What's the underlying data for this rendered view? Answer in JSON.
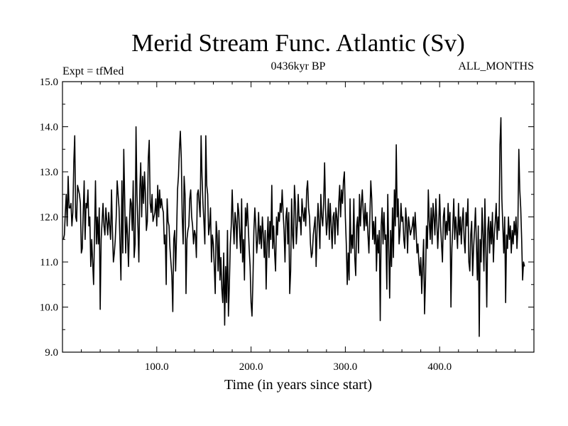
{
  "chart_data": {
    "type": "line",
    "title": "Merid Stream Func. Atlantic (Sv)",
    "subtitle_left": "Expt = tfMed",
    "subtitle_center": "0436kyr BP",
    "subtitle_right": "ALL_MONTHS",
    "xlabel": "Time (in years since start)",
    "ylabel": "",
    "xlim": [
      0,
      500
    ],
    "ylim": [
      9.0,
      15.0
    ],
    "x_ticks": [
      100,
      200,
      300,
      400
    ],
    "x_tick_labels": [
      "100.0",
      "200.0",
      "300.0",
      "400.0"
    ],
    "y_ticks": [
      9,
      10,
      11,
      12,
      13,
      14,
      15
    ],
    "y_tick_labels": [
      "9.0",
      "10.0",
      "11.0",
      "12.0",
      "13.0",
      "14.0",
      "15.0"
    ],
    "grid": false,
    "series": [
      {
        "x_start": 1,
        "x_step": 1,
        "values": [
          11.5,
          11.6,
          12.1,
          12.5,
          11.8,
          12.9,
          12.2,
          12.2,
          12.3,
          11.8,
          12.1,
          13.2,
          13.8,
          12.0,
          11.9,
          12.7,
          12.6,
          12.5,
          12.3,
          11.2,
          11.3,
          12.1,
          12.8,
          11.5,
          12.3,
          12.2,
          12.6,
          11.8,
          12.0,
          10.9,
          11.5,
          11.0,
          10.5,
          11.6,
          12.8,
          11.4,
          12.0,
          11.4,
          12.2,
          9.95,
          11.5,
          11.9,
          12.3,
          11.8,
          11.6,
          12.2,
          11.9,
          11.6,
          12.1,
          11.8,
          11.5,
          12.6,
          11.7,
          11.0,
          11.2,
          11.5,
          12.0,
          12.8,
          12.5,
          12.2,
          11.4,
          10.6,
          12.8,
          11.2,
          13.5,
          12.4,
          11.2,
          12.0,
          11.6,
          10.9,
          11.8,
          12.4,
          12.3,
          11.7,
          12.8,
          11.1,
          11.4,
          14.0,
          12.5,
          11.8,
          11.0,
          12.6,
          13.2,
          12.0,
          12.9,
          12.3,
          13.0,
          12.5,
          11.7,
          11.9,
          13.3,
          13.7,
          12.3,
          12.1,
          12.5,
          11.9,
          12.0,
          12.1,
          12.4,
          11.8,
          12.7,
          12.0,
          12.6,
          12.2,
          12.4,
          12.2,
          12.1,
          11.4,
          11.6,
          10.5,
          12.4,
          11.9,
          11.8,
          11.3,
          11.0,
          10.7,
          9.9,
          11.5,
          11.7,
          10.8,
          11.6,
          12.6,
          12.9,
          13.5,
          13.9,
          13.3,
          12.0,
          11.4,
          12.9,
          12.5,
          10.3,
          11.5,
          11.7,
          11.8,
          12.4,
          12.6,
          12.0,
          11.8,
          11.4,
          11.7,
          11.6,
          11.1,
          12.5,
          12.6,
          12.3,
          12.0,
          13.8,
          12.9,
          12.3,
          11.9,
          11.4,
          13.8,
          12.7,
          12.5,
          11.6,
          11.8,
          12.2,
          11.0,
          11.6,
          11.4,
          10.9,
          10.3,
          11.9,
          11.6,
          10.8,
          11.7,
          10.6,
          11.1,
          10.4,
          10.1,
          11.2,
          9.6,
          10.9,
          10.1,
          11.7,
          9.8,
          10.5,
          11.4,
          11.8,
          12.6,
          11.9,
          11.4,
          12.1,
          11.9,
          11.3,
          12.3,
          12.1,
          11.6,
          11.2,
          12.4,
          11.0,
          11.5,
          10.6,
          12.2,
          11.8,
          12.3,
          11.8,
          11.3,
          10.9,
          10.1,
          9.8,
          10.6,
          11.7,
          12.2,
          11.8,
          11.2,
          11.5,
          12.1,
          11.4,
          11.8,
          11.3,
          12.0,
          11.6,
          11.1,
          11.7,
          10.4,
          11.4,
          12.0,
          11.1,
          11.9,
          11.5,
          12.7,
          11.3,
          11.8,
          11.2,
          10.8,
          12.0,
          11.6,
          12.1,
          11.9,
          12.3,
          12.1,
          12.6,
          12.1,
          11.7,
          11.0,
          12.0,
          12.2,
          11.4,
          12.1,
          10.3,
          10.8,
          12.4,
          11.6,
          11.3,
          12.7,
          12.3,
          11.4,
          11.8,
          12.5,
          11.9,
          12.0,
          11.6,
          12.4,
          12.1,
          11.9,
          12.2,
          11.8,
          12.6,
          12.8,
          12.2,
          12.0,
          11.4,
          11.1,
          11.2,
          11.6,
          11.8,
          12.0,
          10.9,
          11.7,
          12.3,
          11.9,
          11.3,
          12.5,
          12.0,
          11.8,
          12.3,
          13.2,
          12.2,
          11.6,
          11.9,
          12.4,
          11.5,
          12.3,
          11.8,
          11.3,
          12.0,
          12.1,
          11.4,
          12.2,
          12.0,
          11.6,
          12.3,
          12.7,
          12.0,
          12.6,
          12.3,
          12.8,
          13.0,
          12.0,
          11.4,
          10.5,
          11.2,
          10.6,
          12.4,
          11.2,
          11.6,
          11.3,
          12.4,
          11.1,
          10.7,
          11.8,
          12.0,
          11.2,
          12.5,
          11.8,
          12.3,
          12.6,
          12.1,
          11.7,
          12.3,
          11.8,
          12.1,
          11.6,
          11.2,
          12.0,
          12.8,
          12.4,
          11.5,
          11.9,
          11.4,
          12.0,
          10.8,
          11.6,
          11.2,
          11.7,
          9.7,
          11.8,
          12.2,
          11.4,
          12.1,
          11.5,
          11.6,
          10.4,
          12.5,
          11.3,
          10.2,
          11.7,
          10.9,
          12.2,
          11.1,
          12.6,
          11.8,
          13.6,
          12.0,
          12.4,
          11.4,
          11.7,
          12.3,
          11.9,
          12.0,
          11.5,
          11.3,
          12.2,
          11.9,
          11.2,
          12.0,
          11.8,
          11.6,
          11.7,
          11.8,
          12.0,
          11.5,
          12.1,
          11.7,
          11.2,
          11.4,
          11.0,
          10.7,
          11.1,
          10.3,
          10.9,
          11.5,
          9.85,
          10.6,
          11.8,
          11.3,
          12.6,
          11.9,
          11.5,
          12.2,
          11.4,
          12.3,
          12.0,
          11.6,
          12.4,
          11.9,
          11.3,
          11.8,
          12.5,
          11.8,
          11.4,
          11.0,
          12.0,
          12.2,
          11.5,
          11.9,
          11.6,
          12.3,
          11.7,
          12.1,
          10.0,
          11.3,
          11.8,
          12.4,
          11.5,
          12.0,
          11.7,
          11.3,
          12.3,
          11.6,
          12.0,
          11.4,
          11.9,
          12.2,
          11.5,
          11.2,
          12.1,
          11.8,
          12.4,
          11.0,
          10.8,
          11.6,
          11.9,
          10.7,
          11.3,
          11.7,
          12.2,
          11.4,
          10.6,
          11.8,
          9.35,
          11.5,
          11.0,
          12.2,
          11.6,
          10.8,
          12.4,
          11.3,
          10.0,
          11.7,
          12.0,
          11.2,
          11.9,
          11.4,
          12.1,
          11.0,
          11.6,
          11.9,
          12.3,
          11.5,
          12.0,
          11.7,
          13.6,
          14.2,
          12.4,
          11.8,
          11.2,
          12.0,
          10.1,
          11.6,
          11.3,
          12.0,
          11.5,
          11.8,
          11.2,
          11.7,
          11.4,
          11.9,
          11.6,
          12.0,
          11.3,
          11.8,
          13.5,
          12.6,
          12.2,
          11.5,
          10.6,
          11.0,
          10.9
        ]
      }
    ]
  }
}
